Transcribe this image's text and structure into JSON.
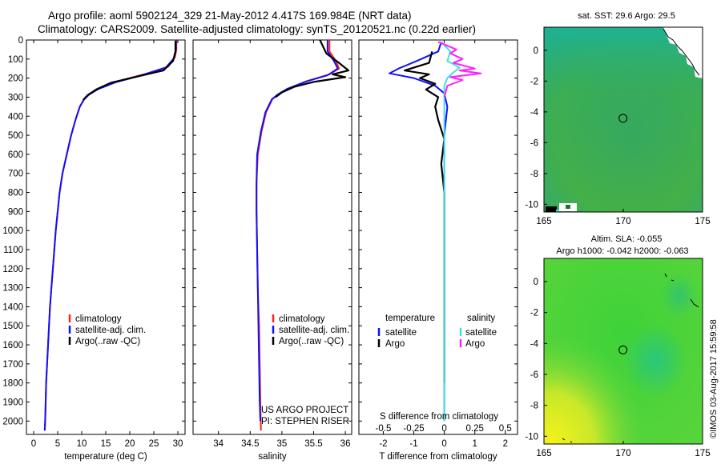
{
  "title_line1": "Argo profile: aoml 5902124_329 21-May-2012 4.417S 169.984E (NRT data)",
  "title_line2": "Climatology: CARS2009. Satellite-adjusted climatology: synTS_20120521.nc (0.22d earlier)",
  "timestamp": "©IMOS 03-Aug-2017 15:59:58",
  "colors": {
    "climatology": "#ff2020",
    "satellite": "#1010ff",
    "argo": "#000000",
    "salinity_satellite": "#40e0e8",
    "salinity_argo": "#ff20ff"
  },
  "chart_data": [
    {
      "id": "temperature",
      "type": "line",
      "xlabel": "temperature (deg C)",
      "ylabel": "",
      "xlim": [
        -1.5,
        31.5
      ],
      "ylim": [
        2070,
        0
      ],
      "xticks": [
        0,
        5,
        10,
        15,
        20,
        25,
        30
      ],
      "xtick_labels": [
        "0",
        "5",
        "10",
        "15",
        "20",
        "25",
        "30"
      ],
      "yticks": [
        0,
        100,
        200,
        300,
        400,
        500,
        600,
        700,
        800,
        900,
        1000,
        1100,
        1200,
        1300,
        1400,
        1500,
        1600,
        1700,
        1800,
        1900,
        2000
      ],
      "legend": [
        "climatology",
        "satellite-adj. clim.",
        "Argo(..raw -QC)"
      ],
      "series": [
        {
          "name": "climatology",
          "color_key": "climatology",
          "points": [
            [
              29.7,
              0
            ],
            [
              29.7,
              50
            ],
            [
              29.4,
              90
            ],
            [
              28,
              140
            ],
            [
              23,
              180
            ],
            [
              17,
              220
            ],
            [
              13.5,
              255
            ],
            [
              11.5,
              285
            ],
            [
              10.5,
              310
            ],
            [
              9.6,
              350
            ],
            [
              8.7,
              420
            ],
            [
              7.8,
              500
            ],
            [
              6.9,
              600
            ],
            [
              6,
              700
            ],
            [
              5.4,
              800
            ],
            [
              5,
              900
            ],
            [
              4.6,
              1000
            ],
            [
              4.3,
              1100
            ],
            [
              4,
              1200
            ],
            [
              3.7,
              1300
            ],
            [
              3.4,
              1400
            ],
            [
              3.2,
              1500
            ],
            [
              3,
              1600
            ],
            [
              2.8,
              1700
            ],
            [
              2.6,
              1800
            ],
            [
              2.5,
              1900
            ],
            [
              2.4,
              2000
            ],
            [
              2.3,
              2050
            ]
          ]
        },
        {
          "name": "satellite-adj. clim.",
          "color_key": "satellite",
          "points": [
            [
              29.6,
              0
            ],
            [
              29.6,
              50
            ],
            [
              29.2,
              95
            ],
            [
              27.5,
              145
            ],
            [
              22.5,
              185
            ],
            [
              17,
              222
            ],
            [
              13.5,
              257
            ],
            [
              11.5,
              287
            ],
            [
              10.5,
              312
            ],
            [
              9.6,
              350
            ],
            [
              8.7,
              420
            ],
            [
              7.8,
              500
            ],
            [
              6.9,
              600
            ],
            [
              6,
              700
            ],
            [
              5.4,
              800
            ],
            [
              5,
              900
            ],
            [
              4.6,
              1000
            ],
            [
              4.3,
              1100
            ],
            [
              4,
              1200
            ],
            [
              3.7,
              1300
            ],
            [
              3.4,
              1400
            ],
            [
              3.2,
              1500
            ],
            [
              3,
              1600
            ],
            [
              2.8,
              1700
            ],
            [
              2.6,
              1800
            ],
            [
              2.5,
              1900
            ],
            [
              2.4,
              2000
            ],
            [
              2.3,
              2050
            ]
          ]
        },
        {
          "name": "Argo(..raw -QC)",
          "color_key": "argo",
          "points": [
            [
              29.5,
              5
            ],
            [
              29.5,
              60
            ],
            [
              29,
              110
            ],
            [
              27,
              160
            ],
            [
              21,
              195
            ],
            [
              16,
              225
            ],
            [
              13,
              260
            ],
            [
              11.2,
              290
            ],
            [
              10.3,
              315
            ]
          ]
        }
      ]
    },
    {
      "id": "salinity",
      "type": "line",
      "xlabel": "salinity",
      "ylabel": "",
      "xlim": [
        33.6,
        36.1
      ],
      "ylim": [
        2070,
        0
      ],
      "xticks": [
        34,
        34.5,
        35,
        35.5,
        36
      ],
      "xtick_labels": [
        "34",
        "34.5",
        "35",
        "35.5",
        "36"
      ],
      "legend": [
        "climatology",
        "satellite-adj. clim.",
        "Argo(..raw -QC)"
      ],
      "annotation": [
        "US ARGO PROJECT",
        "PI: STEPHEN RISER"
      ],
      "series": [
        {
          "name": "climatology",
          "color_key": "climatology",
          "points": [
            [
              35.75,
              0
            ],
            [
              35.75,
              60
            ],
            [
              35.85,
              110
            ],
            [
              35.9,
              150
            ],
            [
              35.75,
              180
            ],
            [
              35.4,
              215
            ],
            [
              35.1,
              255
            ],
            [
              34.95,
              285
            ],
            [
              34.85,
              310
            ],
            [
              34.75,
              380
            ],
            [
              34.68,
              480
            ],
            [
              34.62,
              600
            ],
            [
              34.6,
              750
            ],
            [
              34.6,
              900
            ],
            [
              34.61,
              1100
            ],
            [
              34.62,
              1300
            ],
            [
              34.64,
              1500
            ],
            [
              34.65,
              1700
            ],
            [
              34.66,
              1900
            ],
            [
              34.67,
              2050
            ]
          ]
        },
        {
          "name": "satellite-adj. clim.",
          "color_key": "satellite",
          "points": [
            [
              35.72,
              0
            ],
            [
              35.72,
              60
            ],
            [
              35.82,
              110
            ],
            [
              35.88,
              150
            ],
            [
              35.72,
              185
            ],
            [
              35.38,
              218
            ],
            [
              35.08,
              257
            ],
            [
              34.93,
              287
            ],
            [
              34.84,
              312
            ],
            [
              34.74,
              380
            ],
            [
              34.67,
              480
            ],
            [
              34.61,
              600
            ],
            [
              34.6,
              750
            ],
            [
              34.6,
              900
            ],
            [
              34.61,
              1100
            ],
            [
              34.62,
              1300
            ],
            [
              34.63,
              1500
            ],
            [
              34.64,
              1700
            ],
            [
              34.65,
              1900
            ],
            [
              34.66,
              2000
            ]
          ]
        },
        {
          "name": "Argo(..raw -QC)",
          "color_key": "argo",
          "points": [
            [
              35.6,
              0
            ],
            [
              35.7,
              70
            ],
            [
              35.9,
              120
            ],
            [
              36.05,
              160
            ],
            [
              35.8,
              180
            ],
            [
              36.0,
              195
            ],
            [
              35.5,
              220
            ],
            [
              35.2,
              245
            ],
            [
              35.0,
              275
            ],
            [
              34.9,
              300
            ]
          ]
        }
      ]
    },
    {
      "id": "differences",
      "type": "line",
      "xlabel": "T difference from climatology",
      "x2label": "S difference from climatology",
      "xlim": [
        -2.8,
        2.4
      ],
      "ylim": [
        2070,
        0
      ],
      "xticks": [
        -2,
        -1,
        0,
        1,
        2
      ],
      "xtick_labels": [
        "-2",
        "-1",
        "0",
        "1",
        "2"
      ],
      "x2ticks": [
        -2,
        -1,
        0,
        1,
        2
      ],
      "x2tick_labels": [
        "-0.5",
        "-0.25",
        "0",
        "0.25",
        "0.5"
      ],
      "legend_groups": [
        {
          "title": "temperature",
          "entries": [
            "satellite",
            "Argo"
          ]
        },
        {
          "title": "salinity",
          "entries": [
            "satellite",
            "Argo"
          ]
        }
      ],
      "series": [
        {
          "name": "temperature satellite",
          "color_key": "satellite",
          "points": [
            [
              -0.1,
              10
            ],
            [
              -0.2,
              60
            ],
            [
              -0.9,
              110
            ],
            [
              -1.5,
              150
            ],
            [
              -1.8,
              175
            ],
            [
              -1,
              200
            ],
            [
              -0.3,
              240
            ],
            [
              0,
              280
            ],
            [
              0.1,
              350
            ],
            [
              0,
              500
            ],
            [
              0,
              700
            ],
            [
              0,
              1000
            ],
            [
              0,
              1500
            ],
            [
              0,
              2000
            ]
          ]
        },
        {
          "name": "temperature Argo",
          "color_key": "argo",
          "points": [
            [
              -0.4,
              60
            ],
            [
              -0.5,
              120
            ],
            [
              -1.3,
              160
            ],
            [
              -0.5,
              180
            ],
            [
              -0.8,
              200
            ],
            [
              -0.3,
              230
            ],
            [
              -0.6,
              260
            ],
            [
              -0.2,
              300
            ],
            [
              -0.3,
              350
            ],
            [
              -0.2,
              420
            ],
            [
              0,
              520
            ],
            [
              -0.1,
              650
            ],
            [
              0,
              800
            ],
            [
              0,
              1000
            ],
            [
              0,
              1300
            ],
            [
              0,
              1600
            ],
            [
              0,
              1800
            ]
          ]
        },
        {
          "name": "salinity satellite",
          "color_key": "salinity_satellite",
          "points": [
            [
              -0.1,
              10
            ],
            [
              0.2,
              60
            ],
            [
              0.1,
              110
            ],
            [
              0.5,
              145
            ],
            [
              0.3,
              170
            ],
            [
              0.1,
              200
            ],
            [
              0,
              240
            ],
            [
              0,
              300
            ],
            [
              0,
              500
            ],
            [
              0,
              800
            ],
            [
              0,
              1100
            ],
            [
              0,
              1500
            ],
            [
              0,
              2000
            ]
          ]
        },
        {
          "name": "salinity Argo",
          "color_key": "salinity_argo",
          "points": [
            [
              -0.2,
              10
            ],
            [
              0.4,
              50
            ],
            [
              0.2,
              70
            ],
            [
              0.6,
              100
            ],
            [
              0.3,
              120
            ],
            [
              1.0,
              150
            ],
            [
              0.5,
              160
            ],
            [
              1.2,
              175
            ],
            [
              0.2,
              195
            ],
            [
              0.6,
              210
            ],
            [
              0.1,
              240
            ],
            [
              0,
              300
            ]
          ]
        }
      ]
    },
    {
      "id": "sst_map",
      "type": "heatmap",
      "title": "sat. SST: 29.6 Argo: 29.5",
      "xlim": [
        165,
        175
      ],
      "ylim": [
        -10.5,
        1.5
      ],
      "xticks": [
        165,
        170,
        175
      ],
      "xtick_labels": [
        "165",
        "170",
        "175"
      ],
      "yticks": [
        0,
        -2,
        -4,
        -6,
        -8,
        -10
      ],
      "ytick_labels": [
        "0",
        "-2",
        "-4",
        "-6",
        "-8",
        "-10"
      ],
      "marker": {
        "lon": 169.984,
        "lat": -4.417
      }
    },
    {
      "id": "sla_map",
      "type": "heatmap",
      "title": "Altim. SLA: -0.055",
      "subtitle": "Argo h1000: -0.042 h2000: -0.063",
      "xlim": [
        165,
        175
      ],
      "ylim": [
        -10.5,
        1.5
      ],
      "xticks": [
        165,
        170,
        175
      ],
      "xtick_labels": [
        "165",
        "170",
        "175"
      ],
      "yticks": [
        0,
        -2,
        -4,
        -6,
        -8,
        -10
      ],
      "ytick_labels": [
        "0",
        "-2",
        "-4",
        "-6",
        "-8",
        "-10"
      ],
      "marker": {
        "lon": 169.984,
        "lat": -4.417
      }
    }
  ]
}
